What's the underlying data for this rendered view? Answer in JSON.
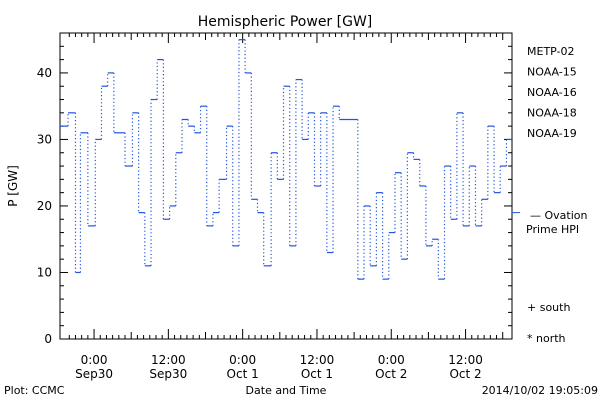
{
  "chart_data": {
    "type": "line",
    "title": "Hemispheric Power [GW]",
    "ylabel": "P [GW]",
    "xlabel": "Date and Time",
    "ylim": [
      0,
      46
    ],
    "yticks": [
      0,
      10,
      20,
      30,
      40
    ],
    "xticks": [
      {
        "time": "0:00",
        "date": "Sep30"
      },
      {
        "time": "12:00",
        "date": "Sep30"
      },
      {
        "time": "0:00",
        "date": "Oct 1"
      },
      {
        "time": "12:00",
        "date": "Oct 1"
      },
      {
        "time": "0:00",
        "date": "Oct 2"
      },
      {
        "time": "12:00",
        "date": "Oct 2"
      }
    ],
    "x_units": "hours from 2014-09-30 00:00 UT",
    "xlim": [
      -5.5,
      67.5
    ],
    "series": [
      {
        "name": "NOAA-15",
        "color": "#2255dd",
        "style": "dotted-step",
        "points": [
          [
            -5.5,
            32
          ],
          [
            -4.2,
            34
          ],
          [
            -3.0,
            10
          ],
          [
            -2.2,
            31
          ],
          [
            -1.0,
            17
          ],
          [
            0.2,
            30
          ],
          [
            1.2,
            38
          ],
          [
            2.2,
            40
          ],
          [
            3.2,
            31
          ],
          [
            5.0,
            26
          ],
          [
            6.2,
            34
          ],
          [
            7.2,
            19
          ],
          [
            8.2,
            11
          ],
          [
            9.2,
            36
          ],
          [
            10.2,
            42
          ],
          [
            11.2,
            18
          ],
          [
            12.2,
            20
          ],
          [
            13.2,
            28
          ],
          [
            14.2,
            33
          ],
          [
            15.2,
            32
          ],
          [
            16.2,
            31
          ],
          [
            17.2,
            35
          ],
          [
            18.2,
            17
          ],
          [
            19.2,
            19
          ],
          [
            20.2,
            24
          ],
          [
            21.4,
            32
          ],
          [
            22.4,
            14
          ],
          [
            23.4,
            45
          ],
          [
            24.4,
            40
          ],
          [
            25.4,
            21
          ],
          [
            26.4,
            19
          ],
          [
            27.4,
            11
          ],
          [
            28.6,
            28
          ],
          [
            29.6,
            24
          ],
          [
            30.6,
            38
          ],
          [
            31.6,
            14
          ],
          [
            32.6,
            39
          ],
          [
            33.6,
            30
          ],
          [
            34.6,
            34
          ],
          [
            35.6,
            23
          ],
          [
            36.6,
            34
          ],
          [
            37.6,
            13
          ],
          [
            38.6,
            35
          ],
          [
            39.6,
            33
          ],
          [
            42.6,
            9
          ],
          [
            43.6,
            20
          ],
          [
            44.6,
            11
          ],
          [
            45.6,
            22
          ],
          [
            46.6,
            9
          ],
          [
            47.6,
            16
          ],
          [
            48.6,
            25
          ],
          [
            49.6,
            12
          ],
          [
            50.6,
            28
          ],
          [
            51.6,
            27
          ],
          [
            52.6,
            23
          ],
          [
            53.6,
            14
          ],
          [
            54.6,
            15
          ],
          [
            55.6,
            9
          ],
          [
            56.6,
            26
          ],
          [
            57.6,
            18
          ],
          [
            58.6,
            34
          ],
          [
            59.6,
            17
          ],
          [
            60.6,
            26
          ],
          [
            61.6,
            17
          ],
          [
            62.6,
            21
          ],
          [
            63.6,
            32
          ],
          [
            64.6,
            22
          ],
          [
            65.6,
            26
          ],
          [
            66.6,
            30
          ]
        ]
      }
    ],
    "legend": {
      "satellites": [
        {
          "name": "METP-02",
          "color": "#000000"
        },
        {
          "name": "NOAA-15",
          "color": "#2255dd"
        },
        {
          "name": "NOAA-16",
          "color": "#22c8dd"
        },
        {
          "name": "NOAA-18",
          "color": "#33dd77"
        },
        {
          "name": "NOAA-19",
          "color": "#ff8c00"
        }
      ],
      "ovation": {
        "value": 19,
        "line1": "Ovation",
        "line2": "Prime HPI",
        "color": "#2255dd"
      },
      "markers": [
        {
          "symbol": "+",
          "label": "south"
        },
        {
          "symbol": "*",
          "label": "north"
        }
      ]
    }
  },
  "footer": {
    "left": "Plot: CCMC",
    "center": "Date and Time",
    "right": "2014/10/02 19:05:09"
  }
}
